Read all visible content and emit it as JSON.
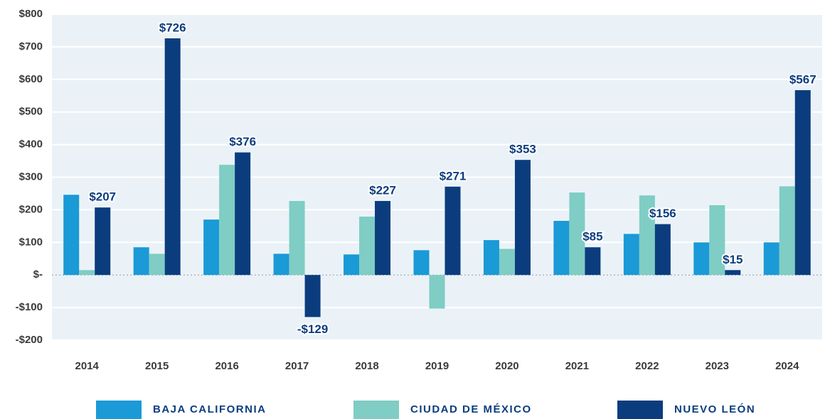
{
  "chart_data": {
    "type": "bar",
    "categories": [
      "2014",
      "2015",
      "2016",
      "2017",
      "2018",
      "2019",
      "2020",
      "2021",
      "2022",
      "2023",
      "2024"
    ],
    "series": [
      {
        "name": "BAJA CALIFORNIA",
        "color": "#1a9ad6",
        "values": [
          246,
          85,
          170,
          65,
          63,
          76,
          107,
          166,
          126,
          100,
          100
        ]
      },
      {
        "name": "CIUDAD DE MÉXICO",
        "color": "#7fcdc4",
        "values": [
          15,
          65,
          338,
          227,
          179,
          -103,
          80,
          253,
          244,
          214,
          272
        ]
      },
      {
        "name": "NUEVO LEÓN",
        "color": "#0b3d7e",
        "values": [
          207,
          726,
          376,
          -129,
          227,
          271,
          353,
          85,
          156,
          15,
          567
        ],
        "value_labels": [
          "$207",
          "$726",
          "$376",
          "-$129",
          "$227",
          "$271",
          "$353",
          "$85",
          "$156",
          "$15",
          "$567"
        ]
      }
    ],
    "ylim": [
      -200,
      800
    ],
    "yticks": [
      {
        "value": -200,
        "label": "-$200"
      },
      {
        "value": -100,
        "label": "-$100"
      },
      {
        "value": 0,
        "label": "$-"
      },
      {
        "value": 100,
        "label": "$100"
      },
      {
        "value": 200,
        "label": "$200"
      },
      {
        "value": 300,
        "label": "$300"
      },
      {
        "value": 400,
        "label": "$400"
      },
      {
        "value": 500,
        "label": "$500"
      },
      {
        "value": 600,
        "label": "$600"
      },
      {
        "value": 700,
        "label": "$700"
      },
      {
        "value": 800,
        "label": "$800"
      }
    ],
    "grid": true
  }
}
